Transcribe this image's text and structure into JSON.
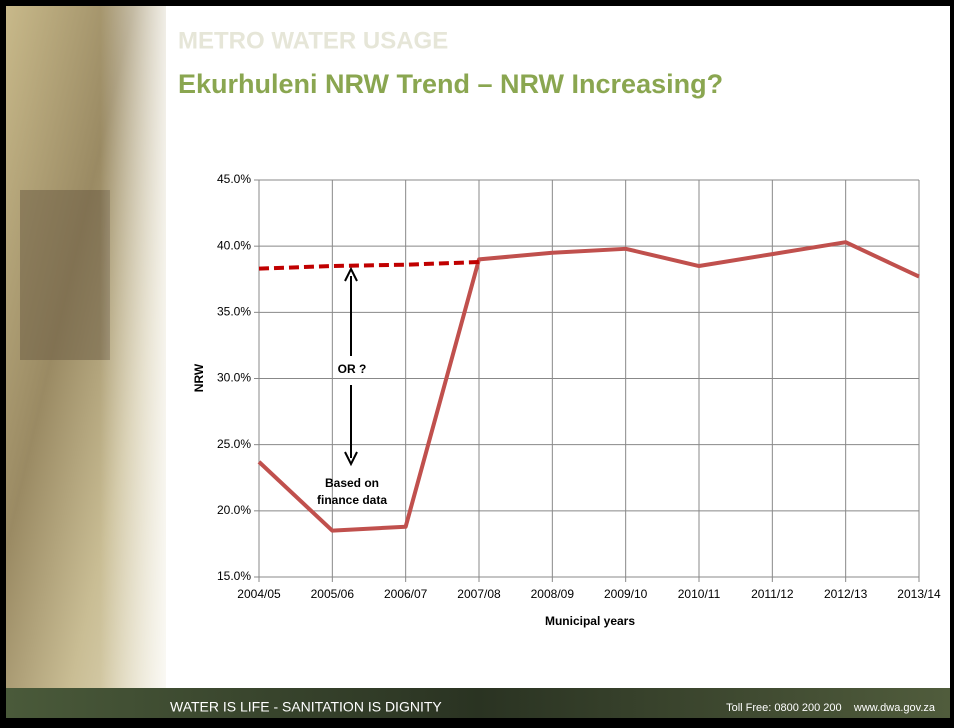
{
  "header": {
    "section": "METRO WATER USAGE",
    "title": "Ekurhuleni NRW Trend – NRW Increasing?"
  },
  "footer": {
    "slogan": "WATER IS LIFE - SANITATION IS DIGNITY",
    "contact": "Toll Free: 0800 200 200    www.dwa.gov.za"
  },
  "chart_data": {
    "type": "line",
    "x_label": "Municipal years",
    "y_label": "NRW",
    "categories": [
      "2004/05",
      "2005/06",
      "2006/07",
      "2007/08",
      "2008/09",
      "2009/10",
      "2010/11",
      "2011/12",
      "2012/13",
      "2013/14"
    ],
    "series": [
      {
        "color": "#c0504d",
        "dash": false,
        "values": [
          23.7,
          18.5,
          18.8,
          39.0,
          39.5,
          39.8,
          38.5,
          39.4,
          40.3,
          37.7
        ]
      },
      {
        "color": "#c00000",
        "dash": true,
        "values": [
          38.3,
          38.5,
          38.6,
          38.8,
          null,
          null,
          null,
          null,
          null,
          null
        ]
      }
    ],
    "ylim": [
      15,
      45
    ],
    "yticks": [
      {
        "value": 15,
        "label": "15.0%"
      },
      {
        "value": 20,
        "label": "20.0%"
      },
      {
        "value": 25,
        "label": "25.0%"
      },
      {
        "value": 30,
        "label": "30.0%"
      },
      {
        "value": 35,
        "label": "35.0%"
      },
      {
        "value": 40,
        "label": "40.0%"
      },
      {
        "value": 45,
        "label": "45.0%"
      }
    ],
    "grid": true,
    "annotations": [
      "OR ?",
      "Based on",
      "finance data"
    ]
  }
}
